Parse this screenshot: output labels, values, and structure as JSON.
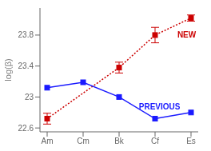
{
  "chart_data": {
    "type": "line",
    "x": [
      0,
      1,
      2,
      3,
      4
    ],
    "xlim": [
      -0.2,
      4.2
    ],
    "xticks": [
      {
        "value": 0,
        "label": "Am"
      },
      {
        "value": 1,
        "label": "Cm"
      },
      {
        "value": 2,
        "label": "Bk"
      },
      {
        "value": 3,
        "label": "Cf"
      },
      {
        "value": 4,
        "label": "Es"
      }
    ],
    "ylabel": "log(β)",
    "ylim": [
      22.55,
      24.15
    ],
    "yticks": [
      22.6,
      23,
      23.4,
      23.8
    ],
    "grid": false,
    "series": [
      {
        "color": "#cc0000",
        "marker": "square",
        "line_style": "dotted",
        "values": [
          22.72,
          null,
          23.38,
          23.8,
          24.02
        ],
        "errors": [
          0.07,
          null,
          0.07,
          0.1,
          0.04
        ]
      },
      {
        "color": "#1a1aff",
        "marker": "square",
        "line_style": "solid",
        "values": [
          23.12,
          23.19,
          23.0,
          22.72,
          22.8
        ]
      }
    ],
    "annotations": [
      {
        "text": "NEW",
        "x": 3.62,
        "y": 23.8,
        "color": "#cc0000"
      },
      {
        "text": "PREVIOUS",
        "x": 2.55,
        "y": 22.88,
        "color": "#1a1aff"
      }
    ]
  }
}
